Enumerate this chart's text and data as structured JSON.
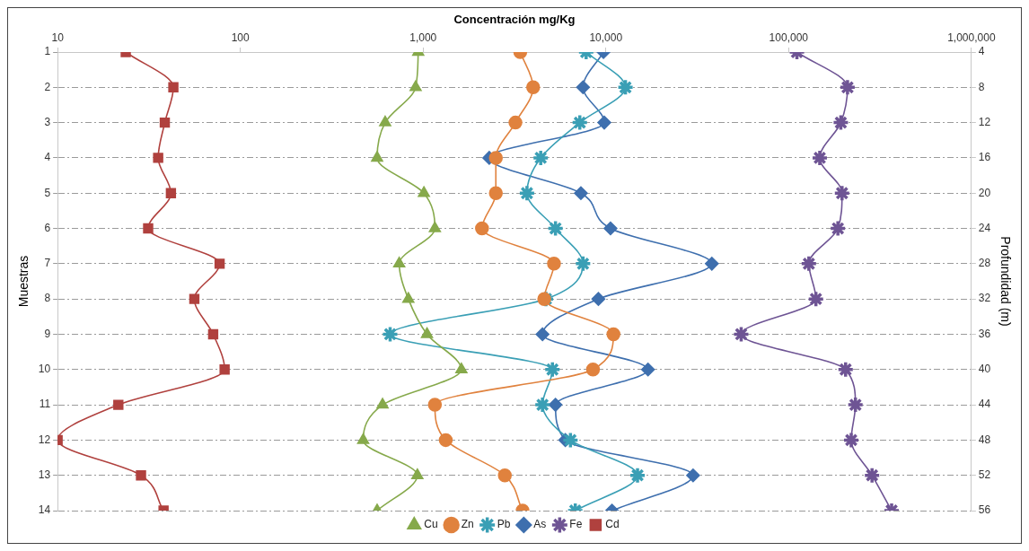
{
  "chart_data": {
    "type": "line",
    "xlabel": "Concentración mg/Kg",
    "ylabel": "Muestras",
    "y2label": "Profundidad (m)",
    "log": "x",
    "xlim": [
      10,
      1000000
    ],
    "xticks": [
      10,
      100,
      {
        "value": 1000,
        "label": "1,000"
      },
      {
        "value": 10000,
        "label": "10,000"
      },
      {
        "value": 100000,
        "label": "100,000"
      },
      {
        "value": 1000000,
        "label": "1,000,000"
      }
    ],
    "ylim": [
      14,
      1
    ],
    "yticks": [
      1,
      2,
      3,
      4,
      5,
      6,
      7,
      8,
      9,
      10,
      11,
      12,
      13,
      14
    ],
    "y2lim": [
      56,
      4
    ],
    "y2ticks": [
      4,
      8,
      12,
      16,
      20,
      24,
      28,
      32,
      36,
      40,
      44,
      48,
      52,
      56
    ],
    "grid": "y",
    "legend": "bottom",
    "line_style": "solid",
    "series": [
      {
        "name": "Cu",
        "color": "#86a94b",
        "marker": "triangle",
        "x": [
          940,
          910,
          620,
          560,
          1010,
          1160,
          740,
          830,
          1050,
          1620,
          600,
          470,
          930,
          560
        ],
        "values": [
          1,
          2,
          3,
          4,
          5,
          6,
          7,
          8,
          9,
          10,
          11,
          12,
          13,
          14
        ]
      },
      {
        "name": "Zn",
        "color": "#e0823e",
        "marker": "circle",
        "x": [
          3400,
          4000,
          3200,
          2500,
          2500,
          2100,
          5200,
          4600,
          11000,
          8500,
          1160,
          1330,
          2800,
          3500
        ],
        "values": [
          1,
          2,
          3,
          4,
          5,
          6,
          7,
          8,
          9,
          10,
          11,
          12,
          13,
          14
        ]
      },
      {
        "name": "Pb",
        "color": "#3a9fb5",
        "marker": "cross",
        "x": [
          7800,
          12800,
          7200,
          4400,
          3700,
          5300,
          7500,
          4700,
          660,
          5100,
          4500,
          6400,
          14900,
          6800
        ],
        "values": [
          1,
          2,
          3,
          4,
          5,
          6,
          7,
          8,
          9,
          10,
          11,
          12,
          13,
          14
        ]
      },
      {
        "name": "As",
        "color": "#3e6fae",
        "marker": "diamond",
        "x": [
          9700,
          7500,
          9800,
          2300,
          7300,
          10600,
          38000,
          9100,
          4500,
          17000,
          5300,
          6000,
          30000,
          10800
        ],
        "values": [
          1,
          2,
          3,
          4,
          5,
          6,
          7,
          8,
          9,
          10,
          11,
          12,
          13,
          14
        ]
      },
      {
        "name": "Fe",
        "color": "#6e5494",
        "marker": "cross",
        "x": [
          111000,
          210000,
          193000,
          148000,
          196000,
          186000,
          129000,
          141000,
          55000,
          205000,
          232000,
          220000,
          286000,
          366000
        ],
        "values": [
          1,
          2,
          3,
          4,
          5,
          6,
          7,
          8,
          9,
          10,
          11,
          12,
          13,
          14
        ]
      },
      {
        "name": "Cd",
        "color": "#b0413e",
        "marker": "square",
        "x": [
          23.6,
          43,
          38.6,
          35.5,
          41.7,
          31.3,
          77,
          56,
          71,
          82,
          21.5,
          10,
          28.6,
          38
        ],
        "values": [
          1,
          2,
          3,
          4,
          5,
          6,
          7,
          8,
          9,
          10,
          11,
          12,
          13,
          14
        ]
      }
    ]
  }
}
